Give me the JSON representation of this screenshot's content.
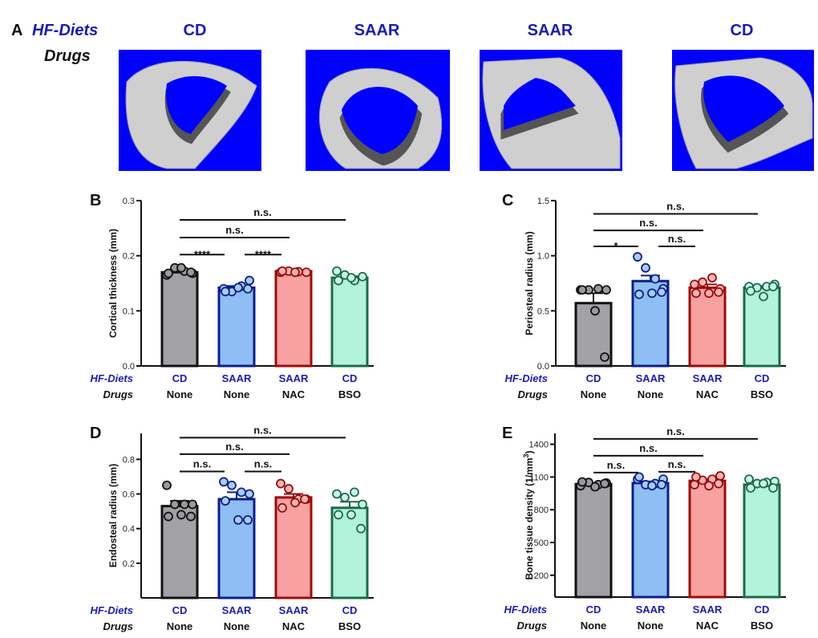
{
  "panel_a": {
    "letter": "A",
    "row_labels": {
      "diets": "HF-Diets",
      "drugs": "Drugs"
    },
    "groups": [
      {
        "diet": "CD",
        "drug": "None"
      },
      {
        "diet": "SAAR",
        "drug": "None"
      },
      {
        "diet": "SAAR",
        "drug": "NAC"
      },
      {
        "diet": "CD",
        "drug": "BSO"
      }
    ],
    "image_background_color": "#0000ff"
  },
  "colors": {
    "CD-None": {
      "fill": "#a2a2a6",
      "stroke": "#111111",
      "point_fill": "#9a9a9e"
    },
    "SAAR-None": {
      "fill": "#8fbef5",
      "stroke": "#0b1f8c",
      "point_fill": "#a9ccf7"
    },
    "SAAR-NAC": {
      "fill": "#f7a1a1",
      "stroke": "#9c0b0b",
      "point_fill": "#f9b5b5"
    },
    "CD-BSO": {
      "fill": "#b3f3dc",
      "stroke": "#1b6b48",
      "point_fill": "#c8f7e6"
    }
  },
  "chart_data": [
    {
      "panel": "B",
      "type": "bar",
      "ylabel": "Cortical thickness (mm)",
      "ylim": [
        0,
        0.3
      ],
      "yticks": [
        "0.0",
        "0.1",
        "0.2",
        "0.3"
      ],
      "ytick_values": [
        0,
        0.1,
        0.2,
        0.3
      ],
      "row_labels": {
        "diets": "HF-Diets",
        "drugs": "Drugs"
      },
      "categories": [
        {
          "diet": "CD",
          "drug": "None"
        },
        {
          "diet": "SAAR",
          "drug": "None"
        },
        {
          "diet": "SAAR",
          "drug": "NAC"
        },
        {
          "diet": "CD",
          "drug": "BSO"
        }
      ],
      "means": [
        0.17,
        0.142,
        0.172,
        0.16
      ],
      "sem": [
        0.003,
        0.003,
        0.001,
        0.003
      ],
      "points": [
        [
          0.165,
          0.178,
          0.172,
          0.168,
          0.168,
          0.178,
          0.17
        ],
        [
          0.14,
          0.135,
          0.145,
          0.155,
          0.135,
          0.142,
          0.14
        ],
        [
          0.17,
          0.172,
          0.171,
          0.17,
          0.172,
          0.17
        ],
        [
          0.172,
          0.165,
          0.155,
          0.162,
          0.155,
          0.16
        ]
      ],
      "significance": [
        {
          "groups": [
            0,
            1
          ],
          "label": "****",
          "y": 0.202
        },
        {
          "groups": [
            1,
            2
          ],
          "label": "****",
          "y": 0.202
        },
        {
          "groups": [
            0,
            2
          ],
          "label": "n.s.",
          "y": 0.233
        },
        {
          "groups": [
            0,
            3
          ],
          "label": "n.s.",
          "y": 0.265
        }
      ]
    },
    {
      "panel": "C",
      "type": "bar",
      "ylabel": "Periosteal radius (mm)",
      "ylim": [
        0,
        1.5
      ],
      "yticks": [
        "0.0",
        "0.5",
        "1.0",
        "1.5"
      ],
      "ytick_values": [
        0,
        0.5,
        1.0,
        1.5
      ],
      "row_labels": {
        "diets": "HF-Diets",
        "drugs": "Drugs"
      },
      "categories": [
        {
          "diet": "CD",
          "drug": "None"
        },
        {
          "diet": "SAAR",
          "drug": "None"
        },
        {
          "diet": "SAAR",
          "drug": "NAC"
        },
        {
          "diet": "CD",
          "drug": "BSO"
        }
      ],
      "means": [
        0.57,
        0.77,
        0.71,
        0.71
      ],
      "sem": [
        0.09,
        0.05,
        0.03,
        0.015
      ],
      "points": [
        [
          0.69,
          0.69,
          0.7,
          0.69,
          0.69,
          0.5,
          0.08
        ],
        [
          0.99,
          0.89,
          0.79,
          0.7,
          0.65,
          0.66,
          0.67
        ],
        [
          0.74,
          0.76,
          0.8,
          0.7,
          0.66,
          0.66,
          0.67
        ],
        [
          0.72,
          0.71,
          0.72,
          0.74,
          0.68,
          0.63,
          0.72
        ]
      ],
      "significance": [
        {
          "groups": [
            0,
            1
          ],
          "label": "*",
          "y": 1.085
        },
        {
          "groups": [
            1,
            2
          ],
          "label": "n.s.",
          "y": 1.085
        },
        {
          "groups": [
            0,
            2
          ],
          "label": "n.s.",
          "y": 1.23
        },
        {
          "groups": [
            0,
            3
          ],
          "label": "n.s.",
          "y": 1.38
        }
      ]
    },
    {
      "panel": "D",
      "type": "bar",
      "ylabel": "Endosteal radius (mm)",
      "ylim": [
        0,
        0.95
      ],
      "yticks": [
        "0.2",
        "0.4",
        "0.6",
        "0.8"
      ],
      "ytick_values": [
        0.2,
        0.4,
        0.6,
        0.8
      ],
      "row_labels": {
        "diets": "HF-Diets",
        "drugs": "Drugs"
      },
      "categories": [
        {
          "diet": "CD",
          "drug": "None"
        },
        {
          "diet": "SAAR",
          "drug": "None"
        },
        {
          "diet": "SAAR",
          "drug": "NAC"
        },
        {
          "diet": "CD",
          "drug": "BSO"
        }
      ],
      "means": [
        0.53,
        0.57,
        0.58,
        0.52
      ],
      "sem": [
        0.03,
        0.04,
        0.02,
        0.035
      ],
      "points": [
        [
          0.65,
          0.54,
          0.54,
          0.54,
          0.47,
          0.48,
          0.47
        ],
        [
          0.67,
          0.65,
          0.61,
          0.6,
          0.56,
          0.45,
          0.45
        ],
        [
          0.66,
          0.63,
          0.57,
          0.57,
          0.52,
          0.55,
          0.57
        ],
        [
          0.6,
          0.58,
          0.61,
          0.54,
          0.48,
          0.48,
          0.4
        ]
      ],
      "significance": [
        {
          "groups": [
            0,
            1
          ],
          "label": "n.s.",
          "y": 0.73
        },
        {
          "groups": [
            1,
            2
          ],
          "label": "n.s.",
          "y": 0.73
        },
        {
          "groups": [
            0,
            2
          ],
          "label": "n.s.",
          "y": 0.83
        },
        {
          "groups": [
            0,
            3
          ],
          "label": "n.s.",
          "y": 0.925
        }
      ]
    },
    {
      "panel": "E",
      "type": "bar",
      "ylabel": "Bone tissue density (1/mm",
      "ylabel_sup": "3",
      "ylabel_end": ")",
      "ylim": [
        0,
        1500
      ],
      "yticks": [
        "200",
        "500",
        "800",
        "1100",
        "1400"
      ],
      "ytick_values": [
        200,
        500,
        800,
        1100,
        1400
      ],
      "row_labels": {
        "diets": "HF-Diets",
        "drugs": "Drugs"
      },
      "categories": [
        {
          "diet": "CD",
          "drug": "None"
        },
        {
          "diet": "SAAR",
          "drug": "None"
        },
        {
          "diet": "SAAR",
          "drug": "NAC"
        },
        {
          "diet": "CD",
          "drug": "BSO"
        }
      ],
      "means": [
        1035,
        1045,
        1065,
        1030
      ],
      "sem": [
        10,
        15,
        15,
        12
      ],
      "points": [
        [
          1020,
          1050,
          1030,
          1045,
          1055,
          1010,
          1040
        ],
        [
          1080,
          1030,
          1040,
          1080,
          1100,
          1020,
          1030
        ],
        [
          1030,
          1070,
          1080,
          1110,
          1100,
          1020,
          1040
        ],
        [
          1080,
          1040,
          1050,
          1060,
          1000,
          1040,
          1000
        ]
      ],
      "significance": [
        {
          "groups": [
            0,
            1
          ],
          "label": "n.s.",
          "y": 1141
        },
        {
          "groups": [
            1,
            2
          ],
          "label": "n.s.",
          "y": 1148
        },
        {
          "groups": [
            0,
            2
          ],
          "label": "n.s.",
          "y": 1295
        },
        {
          "groups": [
            0,
            3
          ],
          "label": "n.s.",
          "y": 1449
        }
      ]
    }
  ]
}
